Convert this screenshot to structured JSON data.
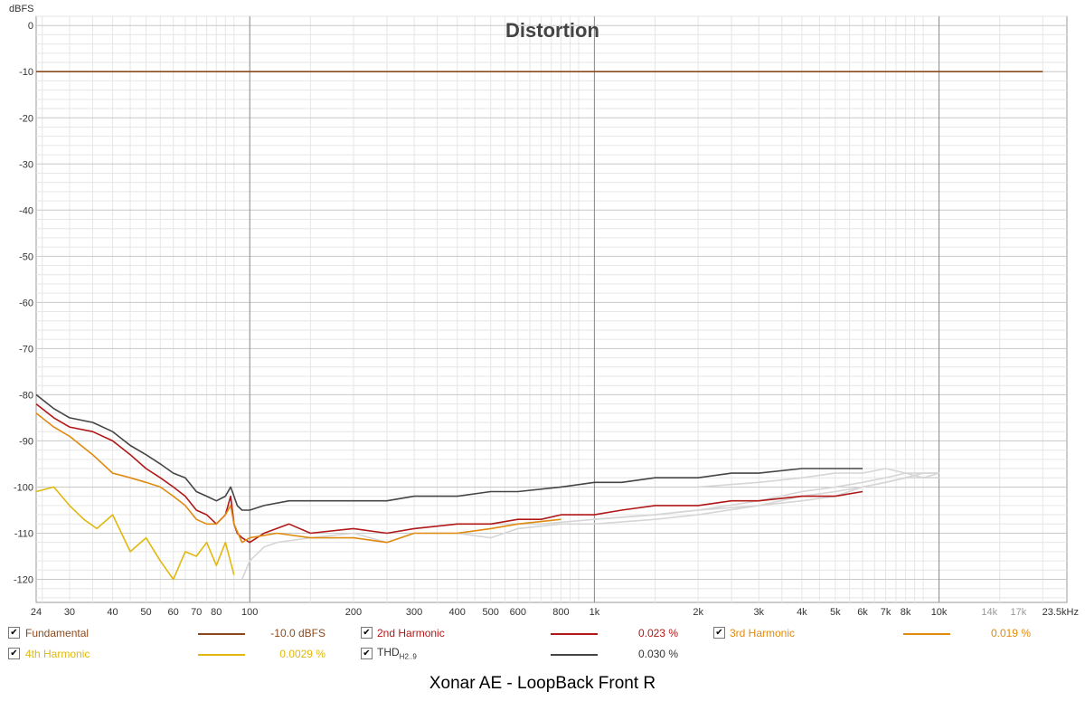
{
  "chart_data": {
    "type": "line",
    "title": "Distortion",
    "ylabel": "dBFS",
    "xlabel": "",
    "x_scale": "log",
    "xlim": [
      24,
      23500
    ],
    "ylim": [
      -125,
      2
    ],
    "grid": true,
    "x_ticks": [
      {
        "v": 24,
        "l": "24"
      },
      {
        "v": 30,
        "l": "30"
      },
      {
        "v": 40,
        "l": "40"
      },
      {
        "v": 50,
        "l": "50"
      },
      {
        "v": 60,
        "l": "60"
      },
      {
        "v": 70,
        "l": "70"
      },
      {
        "v": 80,
        "l": "80"
      },
      {
        "v": 100,
        "l": "100"
      },
      {
        "v": 200,
        "l": "200"
      },
      {
        "v": 300,
        "l": "300"
      },
      {
        "v": 400,
        "l": "400"
      },
      {
        "v": 500,
        "l": "500"
      },
      {
        "v": 600,
        "l": "600"
      },
      {
        "v": 800,
        "l": "800"
      },
      {
        "v": 1000,
        "l": "1k"
      },
      {
        "v": 2000,
        "l": "2k"
      },
      {
        "v": 3000,
        "l": "3k"
      },
      {
        "v": 4000,
        "l": "4k"
      },
      {
        "v": 5000,
        "l": "5k"
      },
      {
        "v": 6000,
        "l": "6k"
      },
      {
        "v": 7000,
        "l": "7k"
      },
      {
        "v": 8000,
        "l": "8k"
      },
      {
        "v": 10000,
        "l": "10k"
      },
      {
        "v": 14000,
        "l": "14k"
      },
      {
        "v": 17000,
        "l": "17k"
      },
      {
        "v": 23500,
        "l": "23.5kHz"
      }
    ],
    "y_ticks": [
      0,
      -10,
      -20,
      -30,
      -40,
      -50,
      -60,
      -70,
      -80,
      -90,
      -100,
      -110,
      -120
    ],
    "series": [
      {
        "name": "Fundamental",
        "color": "#8b4a1e",
        "x": [
          24,
          100,
          1000,
          10000,
          20000
        ],
        "y": [
          -10.0,
          -10.0,
          -10.0,
          -10.0,
          -10.0
        ]
      },
      {
        "name": "2nd Harmonic",
        "color": "#b01818",
        "x": [
          24,
          27,
          30,
          35,
          40,
          45,
          50,
          55,
          60,
          65,
          70,
          75,
          80,
          85,
          88,
          90,
          92,
          95,
          100,
          110,
          130,
          150,
          200,
          250,
          300,
          400,
          500,
          600,
          700,
          800,
          900,
          1000,
          1200,
          1500,
          2000,
          2500,
          3000,
          4000,
          5000,
          6000
        ],
        "y": [
          -82,
          -85,
          -87,
          -88,
          -90,
          -93,
          -96,
          -98,
          -100,
          -102,
          -105,
          -106,
          -108,
          -106,
          -102,
          -108,
          -110,
          -111,
          -112,
          -110,
          -108,
          -110,
          -109,
          -110,
          -109,
          -108,
          -108,
          -107,
          -107,
          -106,
          -106,
          -106,
          -105,
          -104,
          -104,
          -103,
          -103,
          -102,
          -102,
          -101
        ]
      },
      {
        "name": "3rd Harmonic",
        "color": "#e08a10",
        "x": [
          24,
          27,
          30,
          35,
          40,
          45,
          50,
          55,
          60,
          65,
          70,
          75,
          80,
          85,
          88,
          90,
          95,
          100,
          120,
          150,
          200,
          250,
          300,
          400,
          500,
          600,
          800
        ],
        "y": [
          -84,
          -87,
          -89,
          -93,
          -97,
          -98,
          -99,
          -100,
          -102,
          -104,
          -107,
          -108,
          -108,
          -106,
          -104,
          -108,
          -112,
          -111,
          -110,
          -111,
          -111,
          -112,
          -110,
          -110,
          -109,
          -108,
          -107
        ]
      },
      {
        "name": "4th Harmonic",
        "color": "#e0b810",
        "x": [
          24,
          27,
          30,
          33,
          36,
          40,
          45,
          50,
          55,
          60,
          65,
          70,
          75,
          80,
          85,
          90
        ],
        "y": [
          -101,
          -100,
          -104,
          -107,
          -109,
          -106,
          -114,
          -111,
          -116,
          -120,
          -114,
          -115,
          -112,
          -117,
          -112,
          -119
        ]
      },
      {
        "name": "THD H2..9",
        "color": "#454545",
        "x": [
          24,
          27,
          30,
          35,
          40,
          45,
          50,
          55,
          60,
          65,
          70,
          75,
          80,
          85,
          88,
          90,
          92,
          95,
          100,
          110,
          130,
          150,
          200,
          250,
          300,
          400,
          500,
          600,
          800,
          1000,
          1200,
          1500,
          2000,
          2500,
          3000,
          4000,
          5000,
          6000
        ],
        "y": [
          -80,
          -83,
          -85,
          -86,
          -88,
          -91,
          -93,
          -95,
          -97,
          -98,
          -101,
          -102,
          -103,
          -102,
          -100,
          -102,
          -104,
          -105,
          -105,
          -104,
          -103,
          -103,
          -103,
          -103,
          -102,
          -102,
          -101,
          -101,
          -100,
          -99,
          -99,
          -98,
          -98,
          -97,
          -97,
          -96,
          -96,
          -96
        ]
      },
      {
        "name": "",
        "color": "#d6d6d6",
        "x": [
          95,
          100,
          110,
          120,
          150,
          200,
          250,
          300,
          400,
          500,
          600,
          800,
          1000,
          1500,
          2000,
          3000,
          4000,
          5000,
          6000,
          7000,
          8000,
          9000,
          10000
        ],
        "y": [
          -120,
          -116,
          -113,
          -112,
          -111,
          -110,
          -112,
          -110,
          -110,
          -111,
          -109,
          -108,
          -108,
          -107,
          -106,
          -104,
          -103,
          -102,
          -100,
          -99,
          -98,
          -97,
          -97
        ]
      },
      {
        "name": "",
        "color": "#d6d6d6",
        "x": [
          500,
          700,
          1000,
          1500,
          2000,
          3000,
          4000,
          5000,
          6000,
          7000,
          8000,
          9000,
          10000
        ],
        "y": [
          -108,
          -108,
          -107,
          -106,
          -105,
          -104,
          -102,
          -101,
          -100,
          -99,
          -98,
          -98,
          -97
        ]
      },
      {
        "name": "",
        "color": "#d6d6d6",
        "x": [
          1000,
          1500,
          2000,
          3000,
          4000,
          5000,
          6000,
          7000,
          8000,
          9000,
          10000
        ],
        "y": [
          -107,
          -106,
          -105,
          -103,
          -101,
          -100,
          -99,
          -98,
          -97,
          -97,
          -97
        ]
      },
      {
        "name": "",
        "color": "#d6d6d6",
        "x": [
          2000,
          3000,
          4000,
          5000,
          6000,
          7000,
          8000,
          9000,
          10000
        ],
        "y": [
          -100,
          -99,
          -98,
          -97,
          -97,
          -96,
          -97,
          -98,
          -98
        ]
      }
    ]
  },
  "legend": {
    "fundamental": {
      "label": "Fundamental",
      "value": "-10.0 dBFS",
      "color": "#8b4a1e"
    },
    "h2": {
      "label": "2nd Harmonic",
      "value": "0.023 %",
      "color": "#b01818"
    },
    "h3": {
      "label": "3rd Harmonic",
      "value": "0.019 %",
      "color": "#e08a10"
    },
    "h4": {
      "label": "4th Harmonic",
      "value": "0.0029 %",
      "color": "#e0b810"
    },
    "thd": {
      "label": "THD",
      "sub": "H2..9",
      "value": "0.030 %",
      "color": "#454545"
    },
    "check": "✔"
  },
  "footer": "Xonar AE - LoopBack Front R"
}
